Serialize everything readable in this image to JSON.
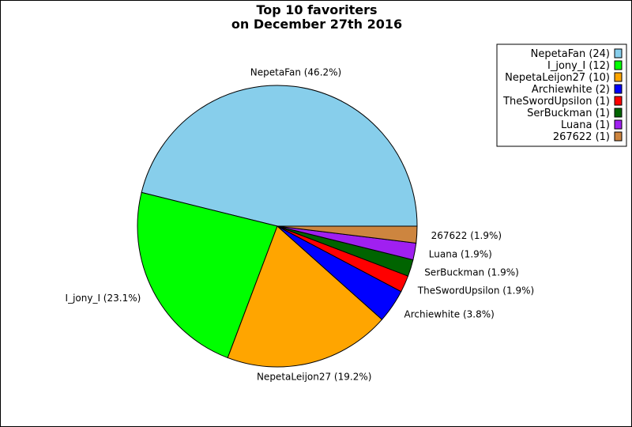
{
  "chart_data": {
    "type": "pie",
    "title": "Top 10 favoriters",
    "subtitle": "on December 27th 2016",
    "slices": [
      {
        "name": "NepetaFan",
        "value": 24,
        "label": "NepetaFan (46.2%)",
        "legend": "NepetaFan (24)",
        "color": "#87CEEB"
      },
      {
        "name": "I_jony_I",
        "value": 12,
        "label": "I_jony_I (23.1%)",
        "legend": "I_jony_I (12)",
        "color": "#00FF00"
      },
      {
        "name": "NepetaLeijon27",
        "value": 10,
        "label": "NepetaLeijon27 (19.2%)",
        "legend": "NepetaLeijon27 (10)",
        "color": "#FFA500"
      },
      {
        "name": "Archiewhite",
        "value": 2,
        "label": "Archiewhite (3.8%)",
        "legend": "Archiewhite (2)",
        "color": "#0000FF"
      },
      {
        "name": "TheSwordUpsilon",
        "value": 1,
        "label": "TheSwordUpsilon (1.9%)",
        "legend": "TheSwordUpsilon (1)",
        "color": "#FF0000"
      },
      {
        "name": "SerBuckman",
        "value": 1,
        "label": "SerBuckman (1.9%)",
        "legend": "SerBuckman (1)",
        "color": "#006400"
      },
      {
        "name": "Luana",
        "value": 1,
        "label": "Luana (1.9%)",
        "legend": "Luana (1)",
        "color": "#A020F0"
      },
      {
        "name": "267622",
        "value": 1,
        "label": "267622 (1.9%)",
        "legend": "267622 (1)",
        "color": "#CD853F"
      }
    ],
    "legend_position": "top-right",
    "start_angle_deg": 0,
    "direction": "counterclockwise"
  }
}
